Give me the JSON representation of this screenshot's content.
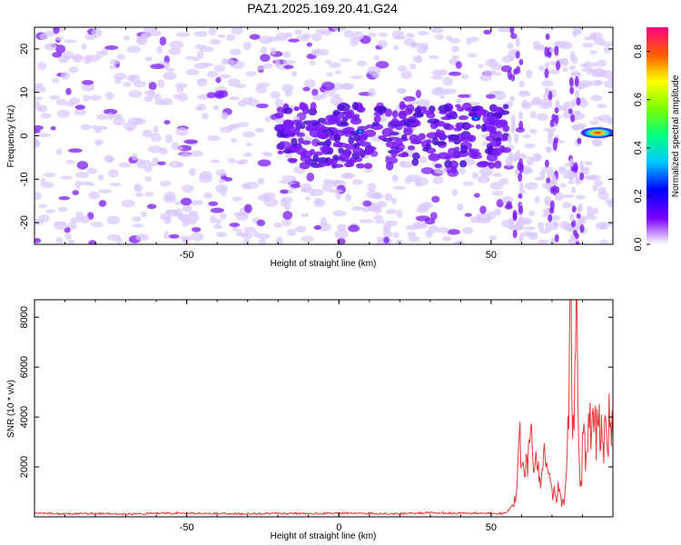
{
  "figure": {
    "title": "PAZ1.2025.169.20.41.G24"
  },
  "chart_data": [
    {
      "type": "heatmap",
      "xlabel": "Height of straight line (km)",
      "ylabel": "Frequency (Hz)",
      "xlim": [
        -100,
        90
      ],
      "ylim": [
        -25,
        25
      ],
      "xticks": [
        -50,
        0,
        50
      ],
      "xtick_labels": [
        "-50",
        "0",
        "50"
      ],
      "yticks": [
        -20,
        -10,
        0,
        10,
        20
      ],
      "ytick_labels": [
        "-20",
        "-10",
        "0",
        "10",
        "20"
      ],
      "colorbar": {
        "label": "Normalized spectral amplitude",
        "range": [
          0.0,
          0.9
        ],
        "ticks": [
          0.0,
          0.2,
          0.4,
          0.6,
          0.8
        ],
        "tick_labels": [
          "0.0",
          "0.2",
          "0.4",
          "0.6",
          "0.8"
        ]
      },
      "features": [
        {
          "x": [
            -100,
            55
          ],
          "y_center": 0,
          "amplitude": 0.15,
          "note": "background noise"
        },
        {
          "x": [
            -20,
            55
          ],
          "y_center": 0,
          "amplitude": 0.3
        },
        {
          "x": 45,
          "y_center": 4,
          "amplitude": 0.45
        },
        {
          "x": 7,
          "y_center": 1,
          "amplitude": 0.4
        },
        {
          "x": [
            80,
            90
          ],
          "y_center": 0.7,
          "amplitude": 0.85
        }
      ],
      "colors": {
        "low": "#d9c8ff",
        "mid": "#7a1bff",
        "peak": "#ff2000"
      }
    },
    {
      "type": "line",
      "xlabel": "Height of straight line (km)",
      "ylabel": "SNR (10 * v/v)",
      "xlim": [
        -100,
        90
      ],
      "ylim": [
        0,
        8700
      ],
      "xticks": [
        -50,
        0,
        50
      ],
      "xtick_labels": [
        "-50",
        "0",
        "50"
      ],
      "yticks": [
        2000,
        4000,
        6000,
        8000
      ],
      "ytick_labels": [
        "2000",
        "4000",
        "6000",
        "8000"
      ],
      "series": [
        {
          "color": "#e8383b",
          "x": [
            -100,
            -90,
            -80,
            -70,
            -60,
            -50,
            -40,
            -30,
            -20,
            -10,
            0,
            10,
            20,
            30,
            40,
            50,
            55,
            58,
            59,
            60,
            62,
            64,
            66,
            68,
            70,
            72,
            74,
            75,
            76,
            77,
            78,
            79,
            80,
            82,
            84,
            86,
            88,
            90
          ],
          "y": [
            150,
            120,
            130,
            110,
            140,
            150,
            130,
            120,
            140,
            130,
            150,
            140,
            130,
            160,
            140,
            150,
            140,
            700,
            3800,
            1500,
            2000,
            3000,
            1200,
            2500,
            900,
            1000,
            400,
            2000,
            8600,
            4500,
            7800,
            1500,
            2400,
            3800,
            3200,
            3400,
            3600,
            3300
          ]
        }
      ]
    }
  ]
}
